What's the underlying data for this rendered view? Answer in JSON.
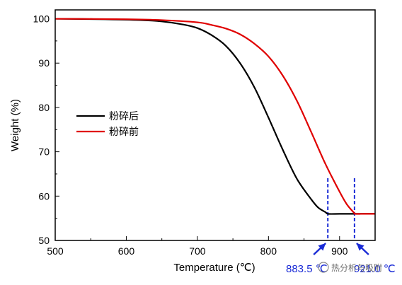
{
  "chart_data": {
    "type": "line",
    "title": "",
    "xlabel": "Temperature (℃)",
    "ylabel": "Weight (%)",
    "xlim": [
      500,
      950
    ],
    "ylim": [
      50,
      102
    ],
    "x_ticks": [
      500,
      600,
      700,
      800,
      900
    ],
    "y_ticks": [
      50,
      60,
      70,
      80,
      90,
      100
    ],
    "grid": false,
    "legend_position": "middle-left",
    "series": [
      {
        "name": "粉碎后",
        "color": "#000000",
        "x": [
          500,
          560,
          620,
          650,
          680,
          700,
          720,
          740,
          760,
          780,
          800,
          820,
          840,
          860,
          870,
          880,
          884,
          900,
          920,
          950
        ],
        "y": [
          100,
          99.9,
          99.7,
          99.4,
          98.7,
          97.9,
          96.3,
          93.9,
          90.0,
          84.6,
          77.7,
          70.5,
          63.9,
          59.3,
          57.4,
          56.4,
          56.0,
          56.0,
          56.0,
          56.0
        ]
      },
      {
        "name": "粉碎前",
        "color": "#e00000",
        "x": [
          500,
          600,
          650,
          700,
          720,
          740,
          760,
          780,
          800,
          820,
          840,
          860,
          880,
          900,
          910,
          920,
          922,
          935,
          950
        ],
        "y": [
          100,
          99.9,
          99.7,
          99.2,
          98.6,
          97.8,
          96.5,
          94.4,
          91.5,
          87.2,
          81.5,
          74.5,
          67.3,
          61.0,
          58.2,
          56.3,
          56.0,
          56.0,
          56.0
        ]
      }
    ],
    "markers": [
      {
        "x": 883.5,
        "label": "883.5 ℃"
      },
      {
        "x": 921.0,
        "label": "921.0 ℃"
      }
    ]
  },
  "watermark": "热分析与吸附"
}
